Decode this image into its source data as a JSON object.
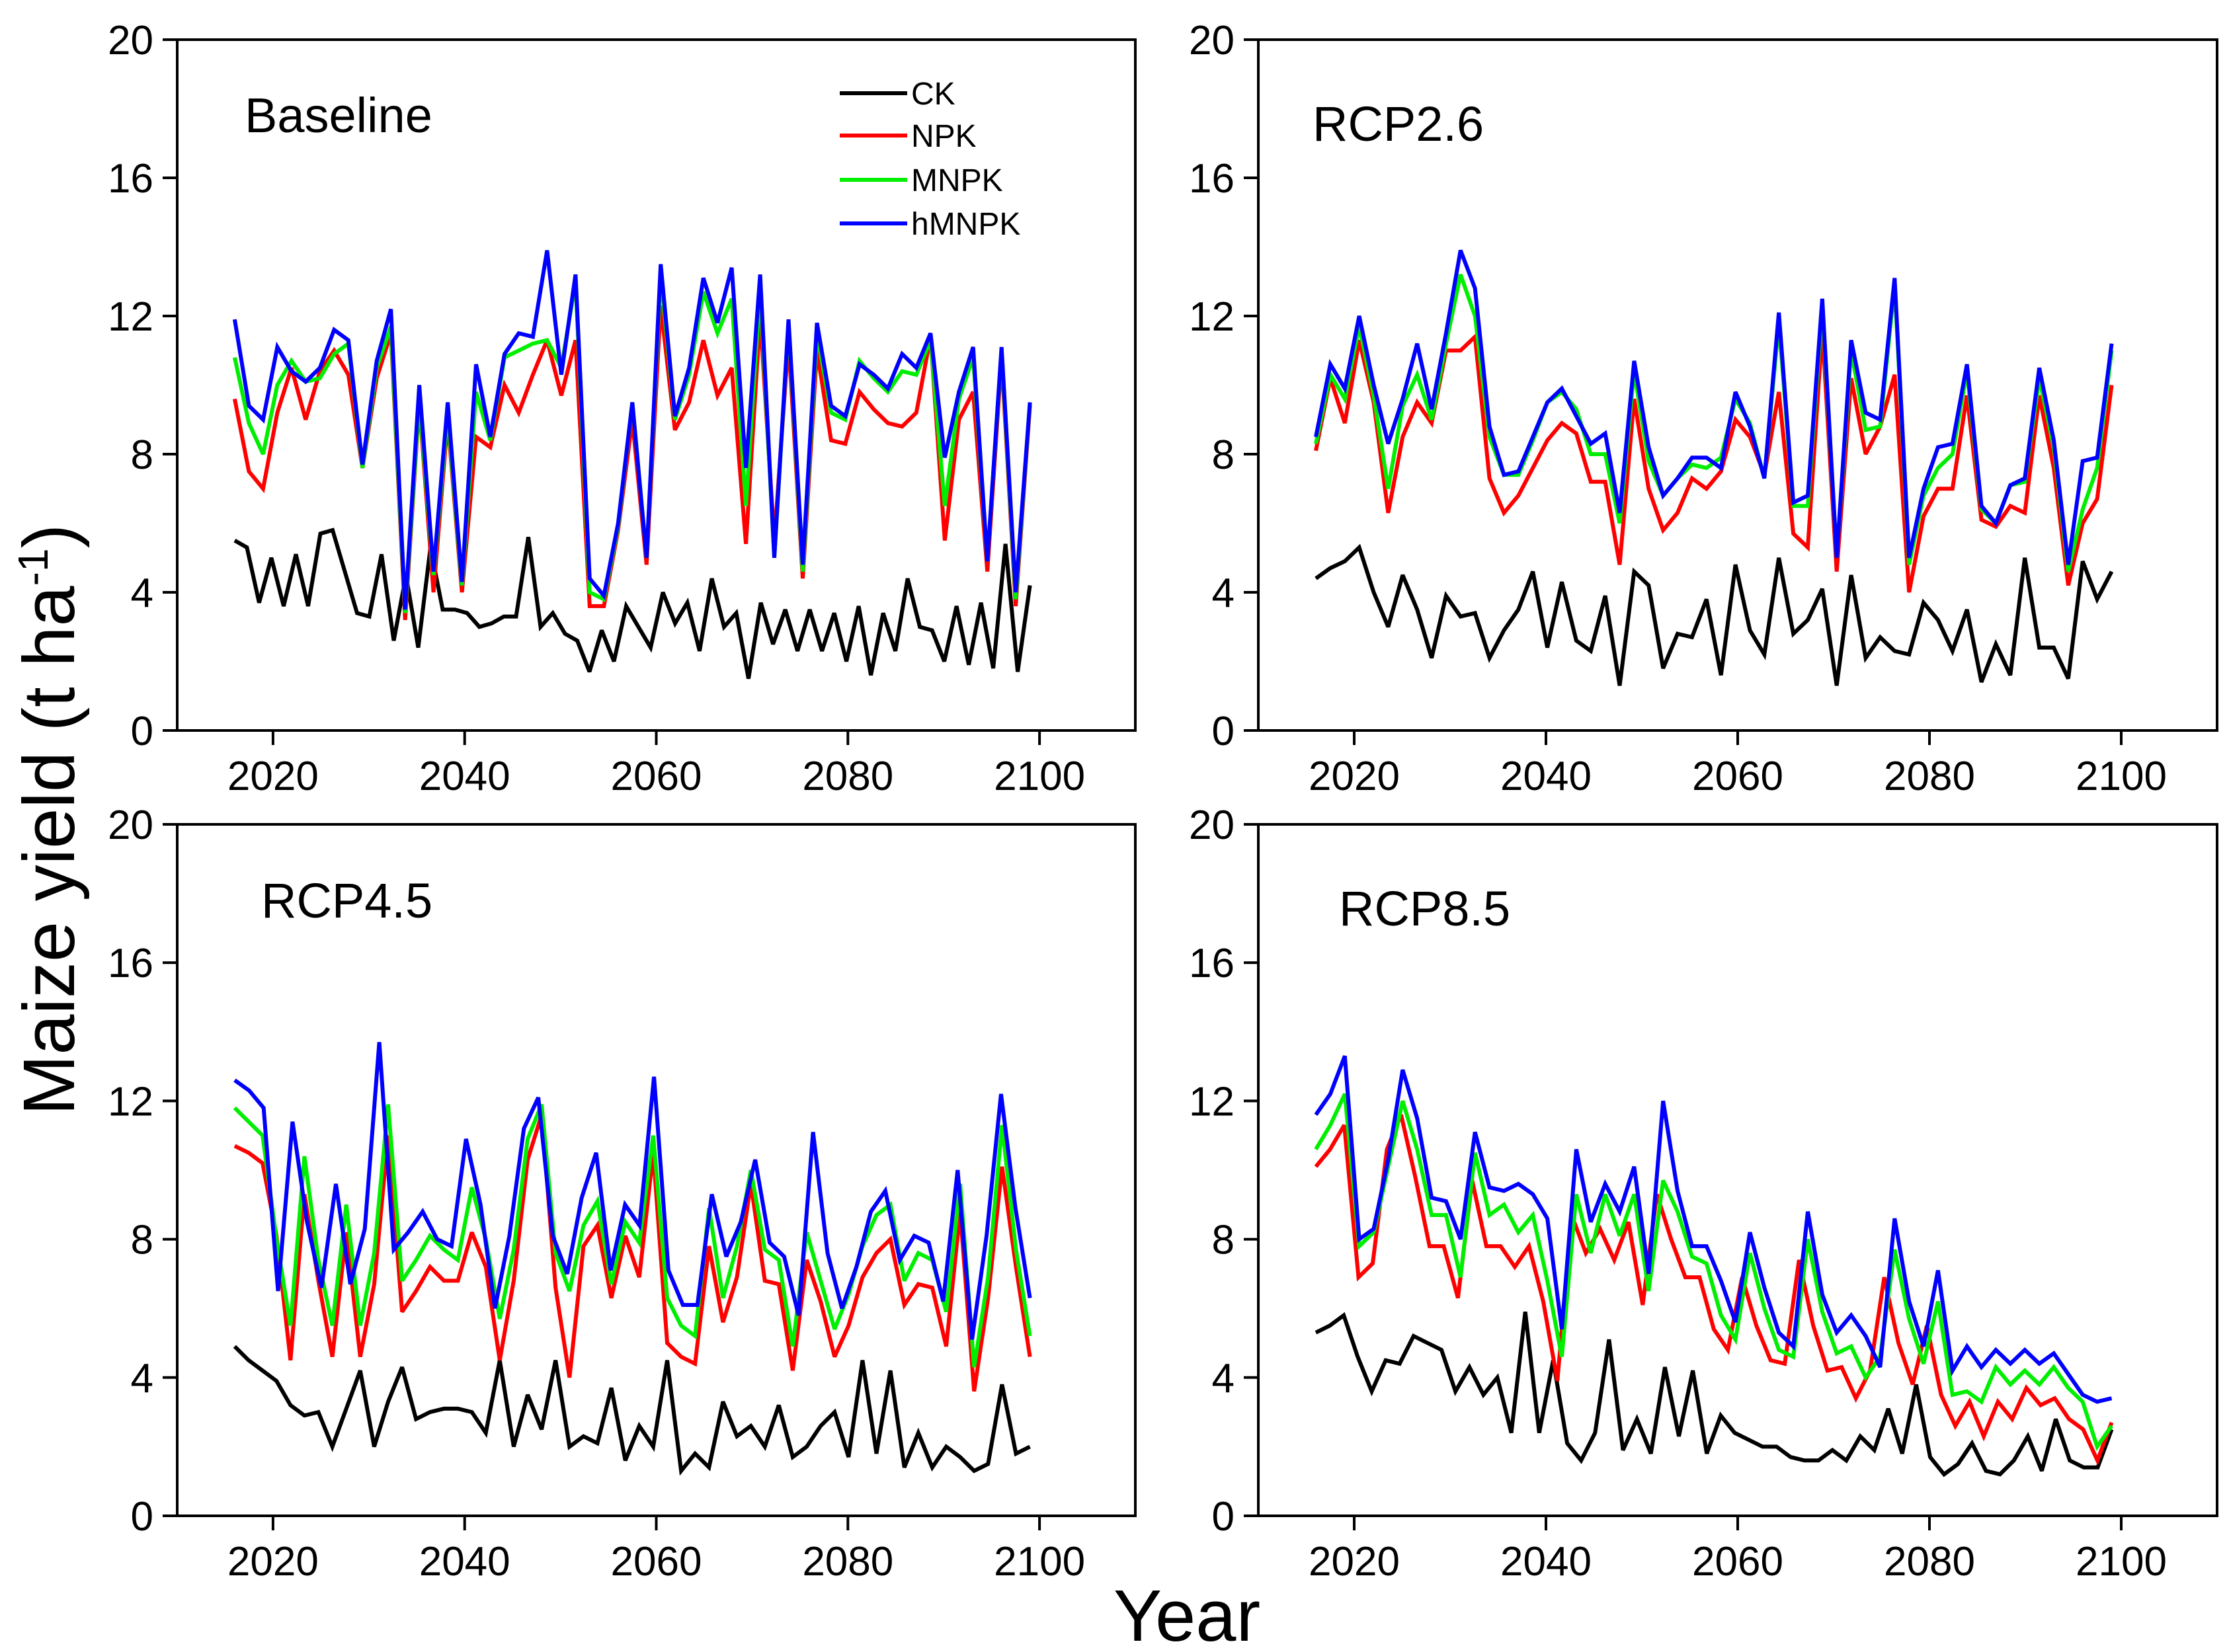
{
  "figure": {
    "ylabel_main": "Maize yield (t ha",
    "ylabel_sup": "-1",
    "ylabel_close": ")",
    "xlabel": "Year"
  },
  "legend": {
    "entries": [
      {
        "label": "CK",
        "color": "#000000"
      },
      {
        "label": "NPK",
        "color": "#ff0000"
      },
      {
        "label": "MNPK",
        "color": "#00ee00"
      },
      {
        "label": "hMNPK",
        "color": "#0000ff"
      }
    ]
  },
  "chart_data": [
    {
      "type": "line",
      "title": "Baseline",
      "xlabel": "Year",
      "ylabel": "Maize yield (t ha-1)",
      "xlim": [
        2010,
        2110
      ],
      "ylim": [
        0,
        20
      ],
      "xticks": [
        2020,
        2040,
        2060,
        2080,
        2100
      ],
      "yticks": [
        0,
        4,
        8,
        12,
        16,
        20
      ],
      "x_start": 2016,
      "x_end": 2099,
      "series": [
        {
          "name": "CK",
          "color": "#000000",
          "values": [
            5.5,
            5.3,
            3.7,
            5.0,
            3.6,
            5.1,
            3.6,
            5.7,
            5.8,
            4.6,
            3.4,
            3.3,
            5.1,
            2.6,
            4.5,
            2.4,
            5.3,
            3.5,
            3.5,
            3.4,
            3.0,
            3.1,
            3.3,
            3.3,
            5.6,
            3.0,
            3.4,
            2.8,
            2.6,
            1.7,
            2.9,
            2.0,
            3.6,
            3.0,
            2.4,
            4.0,
            3.1,
            3.7,
            2.3,
            4.4,
            3.0,
            3.4,
            1.5,
            3.7,
            2.5,
            3.5,
            2.3,
            3.5,
            2.3,
            3.4,
            2.0,
            3.6,
            1.6,
            3.4,
            2.3,
            4.4,
            3.0,
            2.9,
            2.0,
            3.6,
            1.9,
            3.7,
            1.8,
            5.4,
            1.7,
            4.2
          ]
        },
        {
          "name": "NPK",
          "color": "#ff0000",
          "values": [
            9.6,
            7.5,
            7.0,
            9.2,
            10.5,
            9.0,
            10.4,
            11.0,
            10.3,
            7.6,
            10.2,
            11.5,
            3.2,
            9.5,
            4.0,
            9.0,
            4.0,
            8.5,
            8.2,
            10.0,
            9.2,
            10.3,
            11.3,
            9.7,
            11.3,
            3.6,
            3.6,
            5.8,
            9.0,
            4.8,
            12.3,
            8.7,
            9.5,
            11.3,
            9.7,
            10.5,
            5.4,
            12.0,
            5.5,
            11.3,
            4.4,
            11.0,
            8.4,
            8.3,
            9.8,
            9.3,
            8.9,
            8.8,
            9.2,
            11.4,
            5.5,
            9.0,
            9.8,
            4.6,
            10.8,
            3.6,
            9.4
          ]
        },
        {
          "name": "MNPK",
          "color": "#00ee00",
          "values": [
            10.8,
            8.9,
            8.0,
            10.0,
            10.7,
            10.1,
            10.2,
            10.9,
            11.2,
            7.6,
            10.5,
            11.7,
            3.4,
            9.6,
            4.5,
            9.2,
            4.2,
            9.8,
            8.4,
            10.8,
            11.0,
            11.2,
            11.3,
            10.5,
            13.0,
            4.0,
            3.8,
            5.9,
            9.5,
            5.0,
            13.2,
            9.0,
            10.3,
            12.7,
            11.5,
            12.5,
            6.5,
            12.8,
            5.0,
            11.8,
            4.6,
            11.5,
            9.2,
            9.0,
            10.7,
            10.2,
            9.8,
            10.4,
            10.3,
            11.3,
            6.5,
            9.6,
            10.8,
            4.9,
            11.0,
            3.8,
            9.5
          ]
        },
        {
          "name": "hMNPK",
          "color": "#0000ff",
          "values": [
            11.9,
            9.4,
            9.0,
            11.1,
            10.4,
            10.1,
            10.5,
            11.6,
            11.3,
            7.7,
            10.7,
            12.2,
            3.5,
            10.0,
            4.6,
            9.5,
            4.3,
            10.6,
            8.5,
            10.9,
            11.5,
            11.4,
            13.9,
            10.3,
            13.2,
            4.4,
            3.9,
            6.0,
            9.5,
            5.0,
            13.5,
            9.1,
            10.5,
            13.1,
            11.8,
            13.4,
            7.6,
            13.2,
            5.0,
            11.9,
            4.8,
            11.8,
            9.4,
            9.1,
            10.6,
            10.3,
            9.9,
            10.9,
            10.5,
            11.5,
            7.9,
            9.8,
            11.1,
            4.9,
            11.1,
            4.0,
            9.5
          ]
        }
      ]
    },
    {
      "type": "line",
      "title": "RCP2.6",
      "xlabel": "Year",
      "ylabel": "Maize yield (t ha-1)",
      "xlim": [
        2010,
        2110
      ],
      "ylim": [
        0,
        20
      ],
      "xticks": [
        2020,
        2040,
        2060,
        2080,
        2100
      ],
      "yticks": [
        0,
        4,
        8,
        12,
        16,
        20
      ],
      "x_start": 2016,
      "x_end": 2099,
      "series": [
        {
          "name": "CK",
          "color": "#000000",
          "values": [
            4.4,
            4.7,
            4.9,
            5.3,
            4.0,
            3.0,
            4.5,
            3.5,
            2.1,
            3.9,
            3.3,
            3.4,
            2.1,
            2.9,
            3.5,
            4.6,
            2.4,
            4.3,
            2.6,
            2.3,
            3.9,
            1.3,
            4.6,
            4.2,
            1.8,
            2.8,
            2.7,
            3.8,
            1.6,
            4.8,
            2.9,
            2.2,
            5.0,
            2.8,
            3.2,
            4.1,
            1.3,
            4.5,
            2.1,
            2.7,
            2.3,
            2.2,
            3.7,
            3.2,
            2.3,
            3.5,
            1.4,
            2.5,
            1.6,
            5.0,
            2.4,
            2.4,
            1.5,
            4.9,
            3.8,
            4.6
          ]
        },
        {
          "name": "NPK",
          "color": "#ff0000",
          "values": [
            8.1,
            10.2,
            8.9,
            11.3,
            9.5,
            6.3,
            8.5,
            9.5,
            8.9,
            11.0,
            11.0,
            11.4,
            7.3,
            6.3,
            6.8,
            7.6,
            8.4,
            8.9,
            8.6,
            7.2,
            7.2,
            4.8,
            9.6,
            7.0,
            5.8,
            6.3,
            7.3,
            7.0,
            7.5,
            9.0,
            8.5,
            7.4,
            9.8,
            5.7,
            5.3,
            11.6,
            4.6,
            10.2,
            8.0,
            8.8,
            10.3,
            4.0,
            6.2,
            7.0,
            7.0,
            9.7,
            6.1,
            5.9,
            6.5,
            6.3,
            9.7,
            7.6,
            4.2,
            6.0,
            6.7,
            10.0
          ]
        },
        {
          "name": "MNPK",
          "color": "#00ee00",
          "values": [
            8.3,
            10.3,
            9.6,
            11.7,
            9.7,
            7.0,
            9.4,
            10.3,
            9.0,
            11.2,
            13.2,
            12.0,
            8.5,
            7.4,
            7.4,
            8.4,
            9.5,
            9.8,
            9.3,
            8.0,
            8.0,
            6.0,
            10.4,
            7.8,
            6.8,
            7.3,
            7.7,
            7.6,
            7.9,
            9.6,
            8.9,
            7.3,
            11.8,
            6.5,
            6.5,
            12.3,
            5.0,
            11.0,
            8.7,
            8.8,
            12.9,
            4.8,
            6.8,
            7.6,
            8.0,
            10.4,
            6.4,
            6.0,
            7.1,
            7.2,
            10.2,
            8.2,
            4.6,
            6.4,
            7.6,
            11.0
          ]
        },
        {
          "name": "hMNPK",
          "color": "#0000ff",
          "values": [
            8.5,
            10.6,
            9.9,
            12.0,
            10.0,
            8.3,
            9.6,
            11.2,
            9.3,
            11.5,
            13.9,
            12.8,
            8.8,
            7.4,
            7.5,
            8.5,
            9.5,
            9.9,
            9.1,
            8.3,
            8.6,
            6.3,
            10.7,
            8.2,
            6.8,
            7.3,
            7.9,
            7.9,
            7.6,
            9.8,
            8.8,
            7.3,
            12.1,
            6.6,
            6.8,
            12.5,
            5.0,
            11.3,
            9.2,
            9.0,
            13.1,
            5.0,
            7.0,
            8.2,
            8.3,
            10.6,
            6.5,
            6.0,
            7.1,
            7.3,
            10.5,
            8.4,
            4.8,
            7.8,
            7.9,
            11.2
          ]
        }
      ]
    },
    {
      "type": "line",
      "title": "RCP4.5",
      "xlabel": "Year",
      "ylabel": "Maize yield (t ha-1)",
      "xlim": [
        2010,
        2110
      ],
      "ylim": [
        0,
        20
      ],
      "xticks": [
        2020,
        2040,
        2060,
        2080,
        2100
      ],
      "yticks": [
        0,
        4,
        8,
        12,
        16,
        20
      ],
      "x_start": 2016,
      "x_end": 2099,
      "series": [
        {
          "name": "CK",
          "color": "#000000",
          "values": [
            4.9,
            4.5,
            4.2,
            3.9,
            3.2,
            2.9,
            3.0,
            2.0,
            3.1,
            4.2,
            2.0,
            3.3,
            4.3,
            2.8,
            3.0,
            3.1,
            3.1,
            3.0,
            2.4,
            4.5,
            2.0,
            3.5,
            2.5,
            4.5,
            2.0,
            2.3,
            2.1,
            3.7,
            1.6,
            2.6,
            2.0,
            4.5,
            1.3,
            1.8,
            1.4,
            3.3,
            2.3,
            2.6,
            2.0,
            3.2,
            1.7,
            2.0,
            2.6,
            3.0,
            1.7,
            4.5,
            1.8,
            4.2,
            1.4,
            2.4,
            1.4,
            2.0,
            1.7,
            1.3,
            1.5,
            3.8,
            1.8,
            2.0
          ]
        },
        {
          "name": "NPK",
          "color": "#ff0000",
          "values": [
            10.7,
            10.5,
            10.2,
            8.1,
            4.5,
            9.3,
            6.8,
            4.6,
            8.2,
            4.6,
            6.7,
            11.0,
            5.9,
            6.5,
            7.2,
            6.8,
            6.8,
            8.2,
            7.2,
            4.5,
            6.8,
            10.3,
            11.6,
            6.6,
            4.0,
            7.8,
            8.4,
            6.3,
            8.1,
            6.9,
            10.5,
            5.0,
            4.6,
            4.4,
            7.8,
            5.6,
            6.9,
            9.6,
            6.8,
            6.7,
            4.2,
            7.4,
            6.2,
            4.6,
            5.5,
            6.9,
            7.6,
            8.0,
            6.1,
            6.7,
            6.6,
            4.9,
            8.8,
            3.6,
            6.3,
            10.1,
            7.2,
            4.6
          ]
        },
        {
          "name": "MNPK",
          "color": "#00ee00",
          "values": [
            11.8,
            11.4,
            11.0,
            8.0,
            5.5,
            10.4,
            7.4,
            5.5,
            9.0,
            5.5,
            7.6,
            11.9,
            6.8,
            7.4,
            8.1,
            7.7,
            7.4,
            9.5,
            8.0,
            5.7,
            7.7,
            10.9,
            11.9,
            7.6,
            6.5,
            8.4,
            9.1,
            6.7,
            8.5,
            7.9,
            11.0,
            6.3,
            5.5,
            5.2,
            8.9,
            6.3,
            7.8,
            10.0,
            7.7,
            7.4,
            4.9,
            8.2,
            6.8,
            5.4,
            6.4,
            7.8,
            8.7,
            9.0,
            6.8,
            7.6,
            7.4,
            5.9,
            9.6,
            4.3,
            6.9,
            11.3,
            7.7,
            5.2
          ]
        },
        {
          "name": "hMNPK",
          "color": "#0000ff",
          "values": [
            12.6,
            12.3,
            11.8,
            6.5,
            11.4,
            8.5,
            6.6,
            9.6,
            6.7,
            8.3,
            13.7,
            7.7,
            8.2,
            8.8,
            8.0,
            7.8,
            10.9,
            9.0,
            6.0,
            8.1,
            11.2,
            12.1,
            8.1,
            7.0,
            9.2,
            10.5,
            7.1,
            9.0,
            8.4,
            12.7,
            7.1,
            6.1,
            6.1,
            9.3,
            7.5,
            8.5,
            10.3,
            7.9,
            7.5,
            5.8,
            11.1,
            7.6,
            6.0,
            7.2,
            8.8,
            9.4,
            7.4,
            8.1,
            7.9,
            6.2,
            10.0,
            5.1,
            8.1,
            12.2,
            8.9,
            6.3
          ]
        }
      ]
    },
    {
      "type": "line",
      "title": "RCP8.5",
      "xlabel": "Year",
      "ylabel": "Maize yield (t ha-1)",
      "xlim": [
        2010,
        2110
      ],
      "ylim": [
        0,
        20
      ],
      "xticks": [
        2020,
        2040,
        2060,
        2080,
        2100
      ],
      "yticks": [
        0,
        4,
        8,
        12,
        16,
        20
      ],
      "x_start": 2016,
      "x_end": 2099,
      "series": [
        {
          "name": "CK",
          "color": "#000000",
          "values": [
            5.3,
            5.5,
            5.8,
            4.6,
            3.6,
            4.5,
            4.4,
            5.2,
            5.0,
            4.8,
            3.6,
            4.3,
            3.5,
            4.0,
            2.4,
            5.9,
            2.4,
            4.5,
            2.1,
            1.6,
            2.4,
            5.1,
            1.9,
            2.8,
            1.8,
            4.3,
            2.3,
            4.2,
            1.8,
            2.9,
            2.4,
            2.2,
            2.0,
            2.0,
            1.7,
            1.6,
            1.6,
            1.9,
            1.6,
            2.3,
            1.9,
            3.1,
            1.8,
            3.8,
            1.7,
            1.2,
            1.5,
            2.1,
            1.3,
            1.2,
            1.6,
            2.3,
            1.3,
            2.8,
            1.6,
            1.4,
            1.4,
            2.5
          ]
        },
        {
          "name": "NPK",
          "color": "#ff0000",
          "values": [
            10.1,
            10.6,
            11.3,
            6.9,
            7.3,
            10.6,
            11.6,
            9.8,
            7.8,
            7.8,
            6.3,
            9.7,
            7.8,
            7.8,
            7.2,
            7.8,
            6.2,
            3.9,
            8.7,
            7.6,
            8.3,
            7.4,
            8.5,
            6.1,
            9.3,
            8.0,
            6.9,
            6.9,
            5.4,
            4.8,
            6.9,
            5.5,
            4.5,
            4.4,
            7.4,
            5.5,
            4.2,
            4.3,
            3.4,
            4.2,
            6.9,
            5.0,
            3.8,
            5.5,
            3.5,
            2.6,
            3.3,
            2.3,
            3.3,
            2.8,
            3.7,
            3.2,
            3.4,
            2.8,
            2.5,
            1.6,
            2.7
          ]
        },
        {
          "name": "MNPK",
          "color": "#00ee00",
          "values": [
            10.6,
            11.3,
            12.2,
            7.8,
            8.2,
            10.1,
            12.0,
            10.6,
            8.7,
            8.7,
            6.9,
            10.5,
            8.7,
            9.0,
            8.2,
            8.7,
            6.8,
            4.6,
            9.3,
            7.6,
            9.3,
            8.1,
            9.3,
            6.5,
            9.7,
            8.8,
            7.5,
            7.3,
            5.8,
            5.1,
            7.6,
            6.0,
            4.8,
            4.6,
            8.0,
            5.9,
            4.7,
            4.9,
            4.0,
            4.6,
            7.7,
            5.7,
            4.4,
            6.2,
            3.5,
            3.6,
            3.3,
            4.3,
            3.8,
            4.2,
            3.8,
            4.3,
            3.7,
            3.3,
            2.0,
            2.6
          ]
        },
        {
          "name": "hMNPK",
          "color": "#0000ff",
          "values": [
            11.6,
            12.2,
            13.3,
            8.0,
            8.3,
            10.3,
            12.9,
            11.5,
            9.2,
            9.1,
            8.0,
            11.1,
            9.5,
            9.4,
            9.6,
            9.3,
            8.6,
            5.4,
            10.6,
            8.5,
            9.6,
            8.8,
            10.1,
            7.0,
            12.0,
            9.4,
            7.8,
            7.8,
            6.8,
            5.6,
            8.2,
            6.6,
            5.3,
            4.9,
            8.8,
            6.4,
            5.3,
            5.8,
            5.2,
            4.3,
            8.6,
            6.2,
            4.9,
            7.1,
            4.2,
            4.9,
            4.3,
            4.8,
            4.4,
            4.8,
            4.4,
            4.7,
            4.1,
            3.5,
            3.3,
            3.4
          ]
        }
      ]
    }
  ]
}
